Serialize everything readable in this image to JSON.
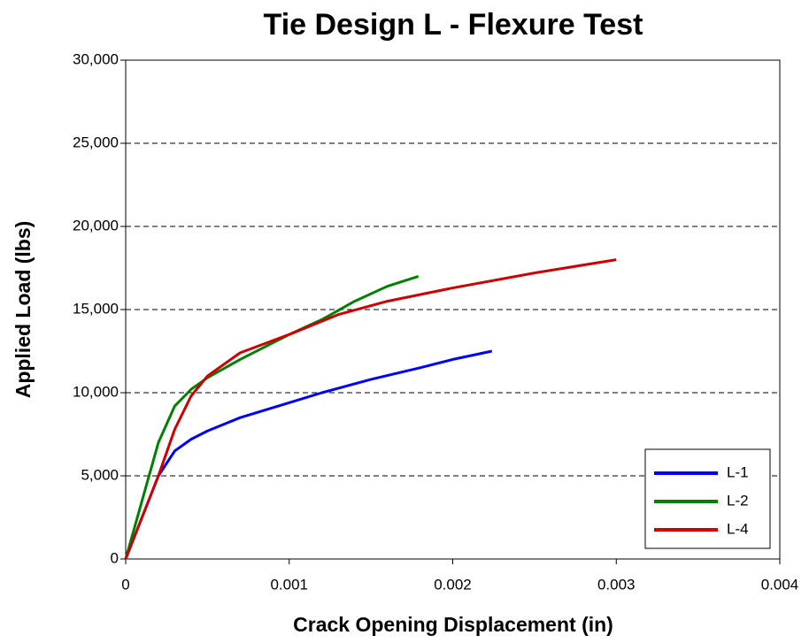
{
  "chart_data": {
    "type": "line",
    "title": "Tie Design L - Flexure Test",
    "xlabel": "Crack Opening Displacement (in)",
    "ylabel": "Applied Load (lbs)",
    "xlim": [
      0,
      0.004
    ],
    "xticks": [
      0,
      0.001,
      0.002,
      0.003,
      0.004
    ],
    "ylim": [
      0,
      30000
    ],
    "yticks": [
      0,
      {
        "value": 5000,
        "label": "5,000"
      },
      {
        "value": 10000,
        "label": "10,000"
      },
      {
        "value": 15000,
        "label": "15,000"
      },
      {
        "value": 20000,
        "label": "20,000"
      },
      {
        "value": 25000,
        "label": "25,000"
      },
      {
        "value": 30000,
        "label": "30,000"
      }
    ],
    "grid": true,
    "legend": "lower right",
    "series": [
      {
        "name": "L-1",
        "color": "#0000ff",
        "x": [
          0,
          0.0001,
          0.0002,
          0.0003,
          0.0004,
          0.0005,
          0.0007,
          0.001,
          0.0012,
          0.0015,
          0.0018,
          0.002,
          0.00224
        ],
        "values": [
          0,
          2500,
          5000,
          6500,
          7200,
          7700,
          8500,
          9400,
          10000,
          10800,
          11500,
          12000,
          12500
        ]
      },
      {
        "name": "L-2",
        "color": "#008000",
        "x": [
          0,
          0.0001,
          0.0002,
          0.0003,
          0.0004,
          0.0005,
          0.0007,
          0.001,
          0.0012,
          0.0014,
          0.0016,
          0.00179
        ],
        "values": [
          0,
          3500,
          7000,
          9200,
          10200,
          10900,
          12000,
          13500,
          14400,
          15500,
          16400,
          17000
        ]
      },
      {
        "name": "L-4",
        "color": "#cc0000",
        "x": [
          0,
          0.0001,
          0.0002,
          0.0003,
          0.0004,
          0.0005,
          0.0007,
          0.001,
          0.0013,
          0.0016,
          0.002,
          0.0025,
          0.003
        ],
        "values": [
          0,
          2500,
          5000,
          7800,
          9800,
          11000,
          12400,
          13500,
          14700,
          15500,
          16300,
          17200,
          18000
        ]
      }
    ]
  }
}
